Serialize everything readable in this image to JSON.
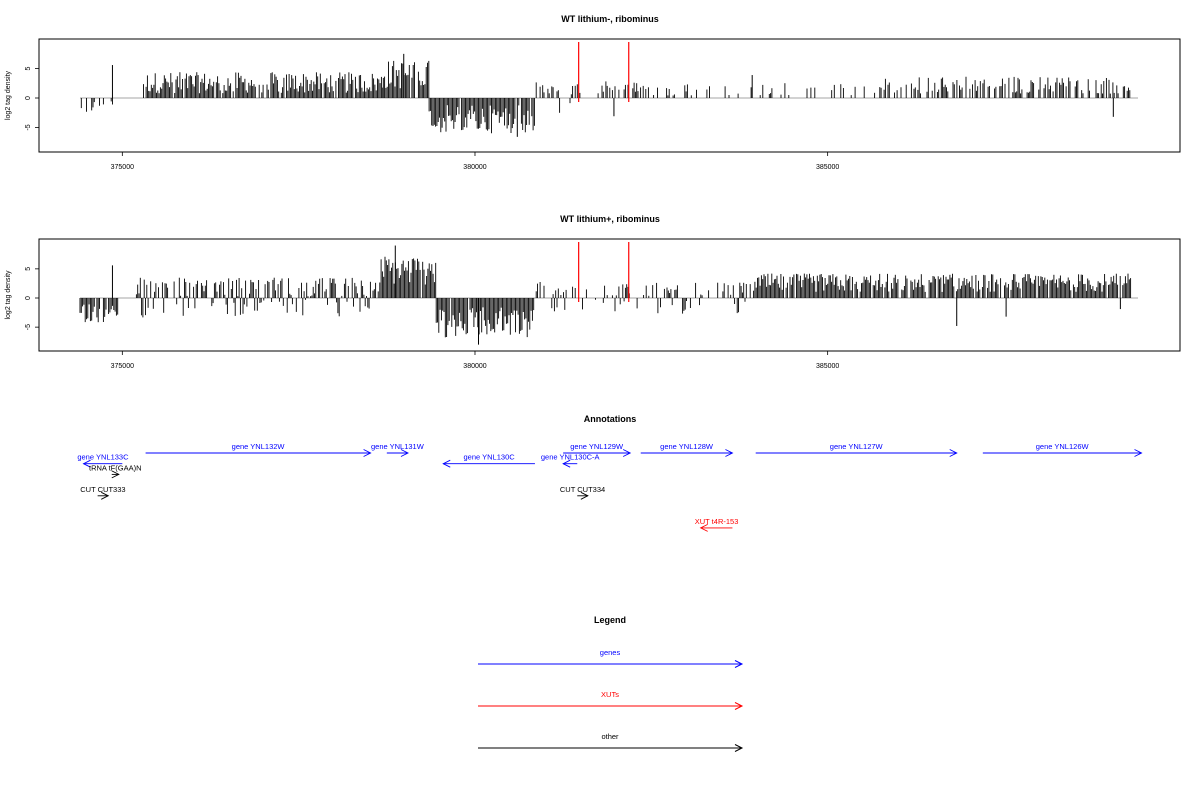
{
  "chart_data": [
    {
      "type": "bar",
      "title": "WT lithium-, ribominus",
      "ylabel": "log2 tag density",
      "xlim": [
        374400,
        389400
      ],
      "ylim": [
        -8.5,
        9
      ],
      "xticks": [
        375000,
        380000,
        385000
      ],
      "yticks": [
        -5,
        0,
        5
      ],
      "grid": false,
      "markers": [
        381470,
        382180
      ],
      "marker_color": "#ff0000",
      "segments": [
        {
          "start": 374400,
          "end": 374950,
          "kind": "neg",
          "mean": 1.4,
          "amp": 1.2,
          "density": 0.35
        },
        {
          "start": 374950,
          "end": 375300,
          "kind": "gap",
          "mean": 0,
          "amp": 0,
          "density": 0
        },
        {
          "start": 375300,
          "end": 378700,
          "kind": "pos",
          "mean": 2.6,
          "amp": 1.8,
          "density": 0.85
        },
        {
          "start": 378700,
          "end": 379350,
          "kind": "pos",
          "mean": 4.0,
          "amp": 2.5,
          "density": 0.95
        },
        {
          "start": 379350,
          "end": 380850,
          "kind": "neg",
          "mean": 3.6,
          "amp": 2.4,
          "density": 0.95
        },
        {
          "start": 380850,
          "end": 381450,
          "kind": "mix",
          "mean": 1.5,
          "amp": 1.2,
          "density": 0.4
        },
        {
          "start": 381450,
          "end": 382200,
          "kind": "pos",
          "mean": 2.0,
          "amp": 1.2,
          "density": 0.35
        },
        {
          "start": 382200,
          "end": 385800,
          "kind": "pos",
          "mean": 1.6,
          "amp": 1.2,
          "density": 0.2
        },
        {
          "start": 385800,
          "end": 389300,
          "kind": "pos",
          "mean": 2.2,
          "amp": 1.5,
          "density": 0.55
        }
      ],
      "spikes": [
        {
          "x": 374860,
          "y": 5.6
        },
        {
          "x": 378990,
          "y": 7.5
        },
        {
          "x": 380600,
          "y": -6.6
        },
        {
          "x": 381970,
          "y": -3.1
        },
        {
          "x": 389050,
          "y": -3.2
        },
        {
          "x": 383930,
          "y": 3.9
        }
      ]
    },
    {
      "type": "bar",
      "title": "WT lithium+, ribominus",
      "ylabel": "log2 tag density",
      "xlim": [
        374400,
        389400
      ],
      "ylim": [
        -8.5,
        9
      ],
      "xticks": [
        375000,
        380000,
        385000
      ],
      "yticks": [
        -5,
        0,
        5
      ],
      "grid": false,
      "markers": [
        381470,
        382180
      ],
      "marker_color": "#ff0000",
      "segments": [
        {
          "start": 374400,
          "end": 374950,
          "kind": "neg",
          "mean": 2.6,
          "amp": 1.6,
          "density": 0.9
        },
        {
          "start": 374950,
          "end": 375200,
          "kind": "gap",
          "mean": 0,
          "amp": 0,
          "density": 0
        },
        {
          "start": 375200,
          "end": 378650,
          "kind": "mix",
          "mean": 1.9,
          "amp": 1.6,
          "density": 0.75
        },
        {
          "start": 378650,
          "end": 379450,
          "kind": "pos",
          "mean": 4.8,
          "amp": 2.6,
          "density": 0.97
        },
        {
          "start": 379450,
          "end": 380850,
          "kind": "neg",
          "mean": 4.2,
          "amp": 2.6,
          "density": 0.97
        },
        {
          "start": 380850,
          "end": 381450,
          "kind": "mix",
          "mean": 1.6,
          "amp": 1.2,
          "density": 0.5
        },
        {
          "start": 381450,
          "end": 383950,
          "kind": "mix",
          "mean": 1.5,
          "amp": 1.2,
          "density": 0.45
        },
        {
          "start": 383950,
          "end": 389300,
          "kind": "pos",
          "mean": 2.6,
          "amp": 1.6,
          "density": 0.9
        }
      ],
      "spikes": [
        {
          "x": 374860,
          "y": 5.6
        },
        {
          "x": 378870,
          "y": 9.0
        },
        {
          "x": 380050,
          "y": -8.0
        },
        {
          "x": 386830,
          "y": -4.8
        },
        {
          "x": 387530,
          "y": -3.2
        },
        {
          "x": 389150,
          "y": -1.9
        }
      ]
    }
  ],
  "annotations": {
    "title": "Annotations",
    "items": [
      {
        "label": "gene YNL133C",
        "start": 375000,
        "end": 374450,
        "strand": "-",
        "row": 1,
        "color": "#0000ff"
      },
      {
        "label": "tRNA tF(GAA)N",
        "start": 374850,
        "end": 374950,
        "strand": "+",
        "row": 2,
        "color": "#000000"
      },
      {
        "label": "gene YNL132W",
        "start": 375330,
        "end": 378520,
        "strand": "+",
        "row": 0,
        "color": "#0000ff"
      },
      {
        "label": "gene YNL131W",
        "start": 378750,
        "end": 379050,
        "strand": "+",
        "row": 0,
        "color": "#0000ff"
      },
      {
        "label": "gene YNL130C",
        "start": 380850,
        "end": 379550,
        "strand": "-",
        "row": 1,
        "color": "#0000ff"
      },
      {
        "label": "gene YNL130C-A",
        "start": 381450,
        "end": 381250,
        "strand": "-",
        "row": 1,
        "color": "#0000ff"
      },
      {
        "label": "gene YNL129W",
        "start": 381250,
        "end": 382200,
        "strand": "+",
        "row": 0,
        "color": "#0000ff"
      },
      {
        "label": "gene YNL128W",
        "start": 382350,
        "end": 383650,
        "strand": "+",
        "row": 0,
        "color": "#0000ff"
      },
      {
        "label": "gene YNL127W",
        "start": 383980,
        "end": 386830,
        "strand": "+",
        "row": 0,
        "color": "#0000ff"
      },
      {
        "label": "gene YNL126W",
        "start": 387200,
        "end": 389450,
        "strand": "+",
        "row": 0,
        "color": "#0000ff"
      },
      {
        "label": "CUT CUT333",
        "start": 374650,
        "end": 374800,
        "strand": "+",
        "row": 4,
        "color": "#000000"
      },
      {
        "label": "CUT CUT334",
        "start": 381450,
        "end": 381600,
        "strand": "+",
        "row": 4,
        "color": "#000000"
      },
      {
        "label": "XUT t4R-153",
        "start": 383650,
        "end": 383200,
        "strand": "-",
        "row": 7,
        "color": "#ff0000"
      }
    ]
  },
  "legend": {
    "title": "Legend",
    "items": [
      {
        "label": "genes",
        "color": "#0000ff"
      },
      {
        "label": "XUTs",
        "color": "#ff0000"
      },
      {
        "label": "other",
        "color": "#000000"
      }
    ]
  }
}
